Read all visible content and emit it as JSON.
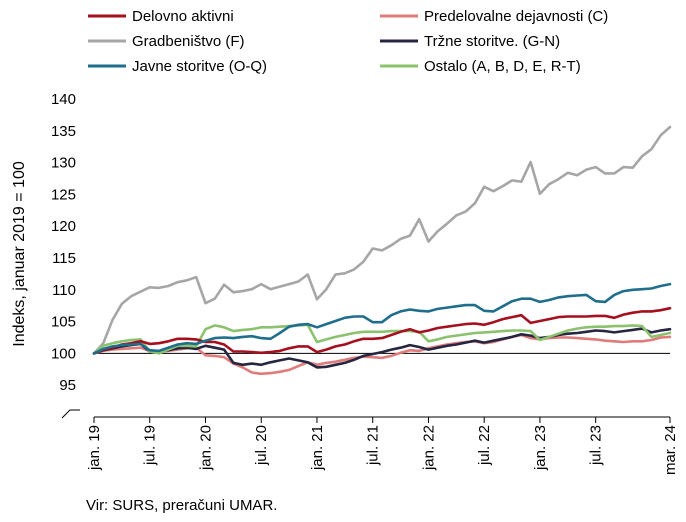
{
  "chart_data": {
    "type": "line",
    "ylabel": "Indeks, januar 2019 = 100",
    "ylim": [
      90,
      140
    ],
    "yticks": [
      95,
      100,
      105,
      110,
      115,
      120,
      125,
      130,
      135,
      140
    ],
    "x": [
      "2019-01",
      "2019-02",
      "2019-03",
      "2019-04",
      "2019-05",
      "2019-06",
      "2019-07",
      "2019-08",
      "2019-09",
      "2019-10",
      "2019-11",
      "2019-12",
      "2020-01",
      "2020-02",
      "2020-03",
      "2020-04",
      "2020-05",
      "2020-06",
      "2020-07",
      "2020-08",
      "2020-09",
      "2020-10",
      "2020-11",
      "2020-12",
      "2021-01",
      "2021-02",
      "2021-03",
      "2021-04",
      "2021-05",
      "2021-06",
      "2021-07",
      "2021-08",
      "2021-09",
      "2021-10",
      "2021-11",
      "2021-12",
      "2022-01",
      "2022-02",
      "2022-03",
      "2022-04",
      "2022-05",
      "2022-06",
      "2022-07",
      "2022-08",
      "2022-09",
      "2022-10",
      "2022-11",
      "2022-12",
      "2023-01",
      "2023-02",
      "2023-03",
      "2023-04",
      "2023-05",
      "2023-06",
      "2023-07",
      "2023-08",
      "2023-09",
      "2023-10",
      "2023-11",
      "2023-12",
      "2024-01",
      "2024-02",
      "2024-03"
    ],
    "xtick_labels": [
      {
        "month": 0,
        "label": "jan. 19"
      },
      {
        "month": 6,
        "label": "jul. 19"
      },
      {
        "month": 12,
        "label": "jan. 20"
      },
      {
        "month": 18,
        "label": "jul. 20"
      },
      {
        "month": 24,
        "label": "jan. 21"
      },
      {
        "month": 30,
        "label": "jul. 21"
      },
      {
        "month": 36,
        "label": "jan. 22"
      },
      {
        "month": 42,
        "label": "jul. 22"
      },
      {
        "month": 48,
        "label": "jan. 23"
      },
      {
        "month": 54,
        "label": "jul. 23"
      },
      {
        "month": 62,
        "label": "mar. 24"
      }
    ],
    "reference_line": 100,
    "legend_placement": "top",
    "series": [
      {
        "name": "Delovno aktivni",
        "color": "#a50f1e",
        "values": [
          100,
          100.6,
          100.9,
          101.4,
          101.6,
          101.9,
          101.5,
          101.6,
          101.9,
          102.3,
          102.3,
          102.2,
          101.8,
          101.8,
          101.4,
          100.3,
          100.3,
          100.2,
          100.1,
          100.2,
          100.4,
          100.8,
          101.1,
          101.1,
          100.2,
          100.6,
          101.1,
          101.4,
          101.9,
          102.3,
          102.3,
          102.4,
          102.9,
          103.4,
          103.8,
          103.3,
          103.6,
          104.0,
          104.2,
          104.4,
          104.6,
          104.7,
          104.5,
          104.9,
          105.4,
          105.7,
          106.0,
          104.8,
          105.1,
          105.4,
          105.7,
          105.8,
          105.8,
          105.8,
          105.9,
          105.9,
          105.6,
          106.1,
          106.4,
          106.6,
          106.6,
          106.8,
          107.1
        ]
      },
      {
        "name": "Predelovalne dejavnosti (C)",
        "color": "#e07b7b",
        "values": [
          100,
          100.4,
          100.6,
          100.7,
          100.8,
          100.9,
          100.4,
          100.3,
          100.4,
          100.6,
          100.8,
          100.9,
          99.7,
          99.6,
          99.4,
          98.4,
          97.8,
          97.0,
          96.8,
          96.9,
          97.1,
          97.4,
          98.0,
          98.6,
          98.2,
          98.5,
          98.7,
          99.0,
          99.3,
          99.5,
          99.4,
          99.3,
          99.6,
          100.1,
          100.5,
          100.4,
          100.8,
          101.1,
          101.4,
          101.6,
          101.8,
          101.9,
          101.6,
          101.8,
          102.2,
          102.6,
          102.9,
          102.4,
          102.2,
          102.4,
          102.5,
          102.5,
          102.4,
          102.3,
          102.2,
          102.0,
          101.9,
          101.8,
          101.9,
          101.9,
          102.1,
          102.5,
          102.6
        ]
      },
      {
        "name": "Gradbeništvo (F)",
        "color": "#a6a6a6",
        "values": [
          100,
          101.6,
          105.3,
          107.8,
          109.0,
          109.7,
          110.4,
          110.3,
          110.6,
          111.2,
          111.5,
          112.0,
          107.9,
          108.6,
          110.8,
          109.6,
          109.8,
          110.1,
          110.9,
          110.1,
          110.5,
          110.9,
          111.3,
          112.4,
          108.5,
          110.1,
          112.4,
          112.6,
          113.2,
          114.4,
          116.5,
          116.2,
          117.0,
          118.0,
          118.5,
          121.1,
          117.6,
          119.2,
          120.4,
          121.7,
          122.3,
          123.6,
          126.2,
          125.5,
          126.3,
          127.2,
          127.0,
          130.1,
          125.1,
          126.6,
          127.4,
          128.4,
          128.0,
          128.9,
          129.3,
          128.3,
          128.3,
          129.3,
          129.2,
          131.0,
          132.1,
          134.3,
          135.6
        ]
      },
      {
        "name": "Tržne storitve. (G-N)",
        "color": "#262640",
        "values": [
          100,
          100.5,
          100.8,
          101.1,
          101.3,
          101.5,
          100.3,
          100.2,
          100.5,
          100.8,
          100.9,
          100.7,
          101.2,
          100.9,
          100.6,
          98.5,
          98.2,
          98.4,
          98.2,
          98.6,
          98.9,
          99.2,
          98.9,
          98.6,
          97.8,
          97.9,
          98.2,
          98.5,
          99.0,
          99.6,
          99.9,
          100.2,
          100.6,
          100.9,
          101.3,
          101.0,
          100.6,
          100.9,
          101.2,
          101.4,
          101.7,
          102.0,
          101.7,
          102.0,
          102.3,
          102.6,
          103.0,
          102.8,
          102.4,
          102.6,
          102.9,
          103.1,
          103.2,
          103.4,
          103.6,
          103.5,
          103.3,
          103.5,
          103.7,
          103.9,
          103.3,
          103.6,
          103.8
        ]
      },
      {
        "name": "Javne storitve (O-Q)",
        "color": "#1f6e8c",
        "values": [
          100,
          100.7,
          101.1,
          101.3,
          101.4,
          101.5,
          100.5,
          100.4,
          100.9,
          101.4,
          101.6,
          101.5,
          102.0,
          102.4,
          102.5,
          102.4,
          102.6,
          102.7,
          102.4,
          102.3,
          103.2,
          104.2,
          104.5,
          104.6,
          104.1,
          104.6,
          105.1,
          105.6,
          105.8,
          105.8,
          104.9,
          104.9,
          106.0,
          106.6,
          106.9,
          106.7,
          106.6,
          107.0,
          107.2,
          107.4,
          107.6,
          107.6,
          106.7,
          106.6,
          107.4,
          108.2,
          108.6,
          108.6,
          108.1,
          108.4,
          108.8,
          109.0,
          109.1,
          109.2,
          108.2,
          108.1,
          109.2,
          109.8,
          110.0,
          110.1,
          110.2,
          110.6,
          110.9
        ]
      },
      {
        "name": "Ostalo (A, B, D, E, R-T)",
        "color": "#8cc26e",
        "values": [
          100,
          101.2,
          101.6,
          101.9,
          102.1,
          102.2,
          100.3,
          100.0,
          100.6,
          101.2,
          101.2,
          101.1,
          103.8,
          104.4,
          104.1,
          103.5,
          103.7,
          103.8,
          104.1,
          104.1,
          104.2,
          104.3,
          104.4,
          104.5,
          101.8,
          102.2,
          102.6,
          102.9,
          103.2,
          103.4,
          103.4,
          103.4,
          103.5,
          103.5,
          103.5,
          103.4,
          101.9,
          102.2,
          102.6,
          102.8,
          103.0,
          103.2,
          103.3,
          103.4,
          103.5,
          103.6,
          103.6,
          103.5,
          102.1,
          102.6,
          103.1,
          103.6,
          103.9,
          104.1,
          104.2,
          104.2,
          104.3,
          104.3,
          104.4,
          104.3,
          102.6,
          102.9,
          103.2
        ]
      }
    ]
  },
  "source_text": "Vir: SURS, preračuni UMAR."
}
